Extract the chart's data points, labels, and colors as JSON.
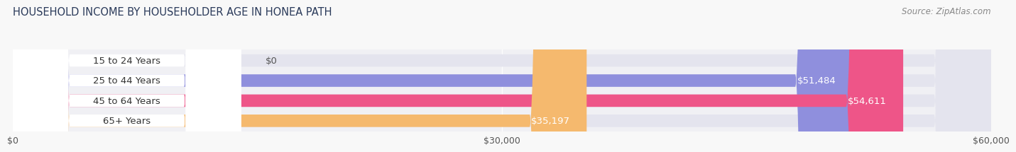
{
  "title": "HOUSEHOLD INCOME BY HOUSEHOLDER AGE IN HONEA PATH",
  "source_text": "Source: ZipAtlas.com",
  "categories": [
    "15 to 24 Years",
    "25 to 44 Years",
    "45 to 64 Years",
    "65+ Years"
  ],
  "values": [
    0,
    51484,
    54611,
    35197
  ],
  "bar_colors": [
    "#6dcfcf",
    "#8f8fdd",
    "#ee5588",
    "#f5b96e"
  ],
  "bar_bg_color": "#e4e4ee",
  "label_bg_color": "#ffffff",
  "value_labels": [
    "$0",
    "$51,484",
    "$54,611",
    "$35,197"
  ],
  "xlim": [
    0,
    60000
  ],
  "xtick_values": [
    0,
    30000,
    60000
  ],
  "xtick_labels": [
    "$0",
    "$30,000",
    "$60,000"
  ],
  "bar_height": 0.62,
  "fig_bg_color": "#f8f8f8",
  "plot_bg_color": "#f0f0f4",
  "title_fontsize": 10.5,
  "label_fontsize": 9.5,
  "tick_fontsize": 9,
  "source_fontsize": 8.5,
  "title_color": "#2a3a5a",
  "source_color": "#888888",
  "category_label_color": "#333333",
  "value_label_color_inside": "#ffffff",
  "value_label_color_outside": "#555555"
}
